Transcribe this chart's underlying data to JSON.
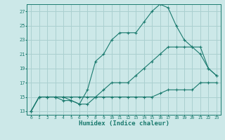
{
  "xlabel": "Humidex (Indice chaleur)",
  "bg_color": "#cce8e8",
  "grid_color": "#aad0d0",
  "line_color": "#1a7a6e",
  "xlim": [
    -0.5,
    23.5
  ],
  "ylim": [
    12.5,
    28
  ],
  "yticks": [
    13,
    15,
    17,
    19,
    21,
    23,
    25,
    27
  ],
  "xticks": [
    0,
    1,
    2,
    3,
    4,
    5,
    6,
    7,
    8,
    9,
    10,
    11,
    12,
    13,
    14,
    15,
    16,
    17,
    18,
    19,
    20,
    21,
    22,
    23
  ],
  "series1_x": [
    0,
    1,
    2,
    3,
    4,
    5,
    6,
    7,
    8,
    9,
    10,
    11,
    12,
    13,
    14,
    15,
    16,
    17,
    18,
    19,
    20,
    21,
    22,
    23
  ],
  "series1_y": [
    13,
    15,
    15,
    15,
    15,
    15,
    15,
    15,
    15,
    15,
    15,
    15,
    15,
    15,
    15,
    15,
    15.5,
    16,
    16,
    16,
    16,
    17,
    17,
    17
  ],
  "series2_x": [
    0,
    1,
    2,
    3,
    4,
    5,
    6,
    7,
    8,
    9,
    10,
    11,
    12,
    13,
    14,
    15,
    16,
    17,
    18,
    19,
    20,
    21,
    22,
    23
  ],
  "series2_y": [
    13,
    15,
    15,
    15,
    15,
    14.5,
    14,
    14,
    15,
    16,
    17,
    17,
    17,
    18,
    19,
    20,
    21,
    22,
    22,
    22,
    22,
    22,
    19,
    18
  ],
  "series3_x": [
    0,
    1,
    2,
    3,
    4,
    5,
    6,
    7,
    8,
    9,
    10,
    11,
    12,
    13,
    14,
    15,
    16,
    17,
    18,
    19,
    20,
    21,
    22,
    23
  ],
  "series3_y": [
    13,
    15,
    15,
    15,
    14.5,
    14.5,
    14,
    16,
    20,
    21,
    23,
    24,
    24,
    24,
    25.5,
    27,
    28,
    27.5,
    25,
    23,
    22,
    21,
    19,
    18
  ]
}
